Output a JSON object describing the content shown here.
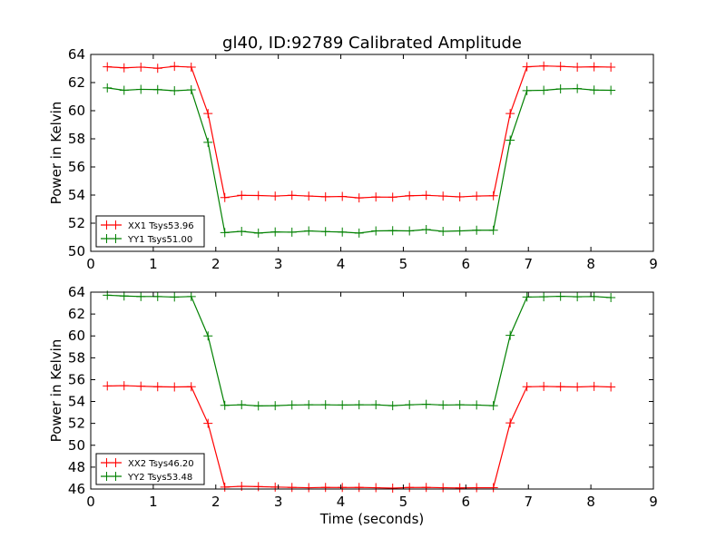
{
  "chart_data": [
    {
      "type": "line",
      "title": "gl40, ID:92789 Calibrated Amplitude",
      "xlabel": "",
      "ylabel": "Power in Kelvin",
      "xlim": [
        0,
        9
      ],
      "ylim": [
        50,
        64
      ],
      "xticks": [
        "0",
        "1",
        "2",
        "3",
        "4",
        "5",
        "6",
        "7",
        "8",
        "9"
      ],
      "yticks": [
        "50",
        "52",
        "54",
        "56",
        "58",
        "60",
        "62",
        "64"
      ],
      "grid": false,
      "legend": "lower-left",
      "x_start": 0.265,
      "x_step": 0.2685,
      "series": [
        {
          "name": "XX1 Tsys53.96",
          "color": "#ff0000",
          "values": [
            63.12,
            63.05,
            63.1,
            63.02,
            63.15,
            63.1,
            59.8,
            53.82,
            53.98,
            53.97,
            53.93,
            53.98,
            53.93,
            53.88,
            53.9,
            53.8,
            53.86,
            53.85,
            53.95,
            53.98,
            53.93,
            53.87,
            53.93,
            53.95,
            59.8,
            63.12,
            63.18,
            63.15,
            63.1,
            63.12,
            63.1
          ]
        },
        {
          "name": "YY1 Tsys51.00",
          "color": "#008000",
          "values": [
            61.62,
            61.45,
            61.52,
            61.5,
            61.42,
            61.48,
            57.75,
            51.33,
            51.42,
            51.3,
            51.38,
            51.36,
            51.45,
            51.4,
            51.37,
            51.3,
            51.45,
            51.47,
            51.45,
            51.55,
            51.42,
            51.45,
            51.5,
            51.5,
            57.9,
            61.43,
            61.45,
            61.55,
            61.57,
            61.47,
            61.45
          ]
        }
      ]
    },
    {
      "type": "line",
      "title": "",
      "xlabel": "Time (seconds)",
      "ylabel": "Power in Kelvin",
      "xlim": [
        0,
        9
      ],
      "ylim": [
        46,
        64
      ],
      "xticks": [
        "0",
        "1",
        "2",
        "3",
        "4",
        "5",
        "6",
        "7",
        "8",
        "9"
      ],
      "yticks": [
        "46",
        "48",
        "50",
        "52",
        "54",
        "56",
        "58",
        "60",
        "62",
        "64"
      ],
      "grid": false,
      "legend": "lower-left",
      "x_start": 0.265,
      "x_step": 0.2685,
      "series": [
        {
          "name": "XX2 Tsys46.20",
          "color": "#ff0000",
          "values": [
            55.42,
            55.45,
            55.4,
            55.35,
            55.33,
            55.35,
            52.0,
            46.18,
            46.25,
            46.22,
            46.18,
            46.15,
            46.12,
            46.15,
            46.14,
            46.15,
            46.12,
            46.08,
            46.14,
            46.15,
            46.12,
            46.1,
            46.12,
            46.12,
            52.05,
            55.35,
            55.38,
            55.35,
            55.33,
            55.38,
            55.33
          ]
        },
        {
          "name": "YY2 Tsys53.48",
          "color": "#008000",
          "values": [
            63.72,
            63.65,
            63.6,
            63.6,
            63.55,
            63.6,
            60.0,
            53.65,
            53.7,
            53.6,
            53.62,
            53.68,
            53.7,
            53.7,
            53.68,
            53.7,
            53.7,
            53.62,
            53.7,
            53.75,
            53.68,
            53.7,
            53.68,
            53.62,
            60.05,
            63.55,
            63.58,
            63.62,
            63.58,
            63.6,
            63.5
          ]
        }
      ]
    }
  ]
}
